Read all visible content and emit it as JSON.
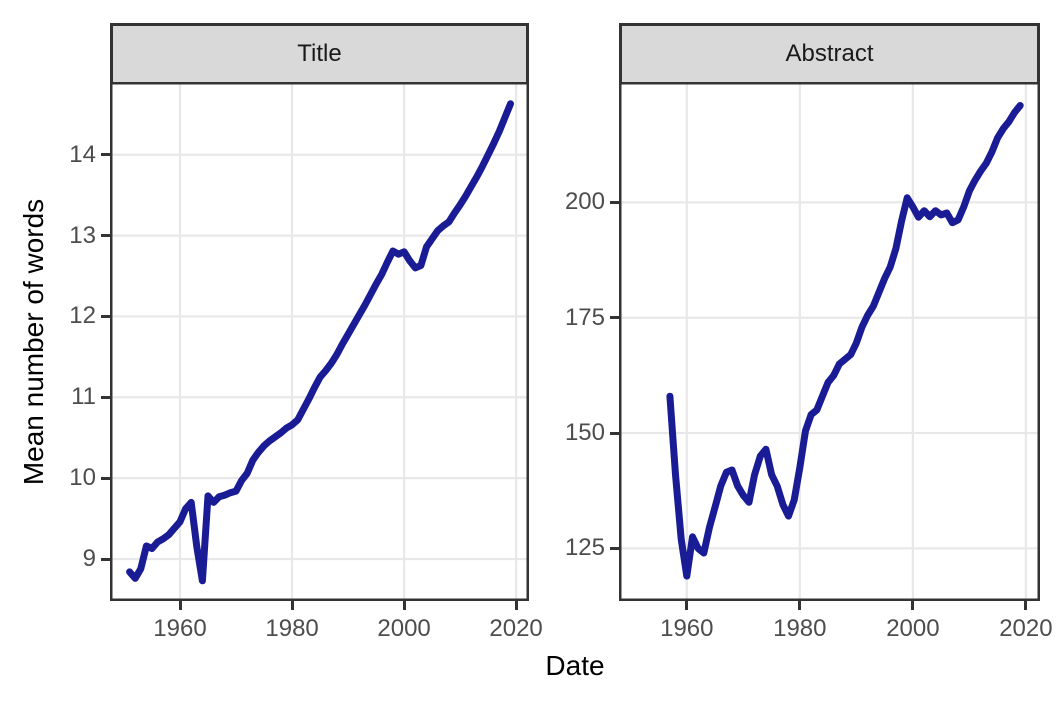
{
  "chart_data": {
    "type": "line",
    "title": "",
    "xlabel": "Date",
    "ylabel": "Mean number of words",
    "legend": "none",
    "grid": "major-only",
    "facets": [
      {
        "label": "Title",
        "xlim": [
          1947.5,
          2022.3
        ],
        "ylim": [
          8.48,
          14.9
        ],
        "xticks": [
          1960,
          1980,
          2000,
          2020
        ],
        "yticks": [
          9,
          10,
          11,
          12,
          13,
          14
        ],
        "x": [
          1951,
          1952,
          1953,
          1954,
          1955,
          1956,
          1957,
          1958,
          1959,
          1960,
          1961,
          1962,
          1963,
          1964,
          1965,
          1966,
          1967,
          1968,
          1969,
          1970,
          1971,
          1972,
          1973,
          1974,
          1975,
          1976,
          1977,
          1978,
          1979,
          1980,
          1981,
          1982,
          1983,
          1984,
          1985,
          1986,
          1987,
          1988,
          1989,
          1990,
          1991,
          1992,
          1993,
          1994,
          1995,
          1996,
          1997,
          1998,
          1999,
          2000,
          2001,
          2002,
          2003,
          2004,
          2005,
          2006,
          2007,
          2008,
          2009,
          2010,
          2011,
          2012,
          2013,
          2014,
          2015,
          2016,
          2017,
          2018,
          2019
        ],
        "y": [
          8.84,
          8.76,
          8.88,
          9.16,
          9.13,
          9.21,
          9.25,
          9.3,
          9.38,
          9.46,
          9.62,
          9.7,
          9.15,
          8.73,
          9.78,
          9.7,
          9.77,
          9.79,
          9.82,
          9.84,
          9.97,
          10.06,
          10.22,
          10.32,
          10.4,
          10.46,
          10.51,
          10.56,
          10.62,
          10.66,
          10.72,
          10.85,
          10.98,
          11.12,
          11.25,
          11.33,
          11.42,
          11.53,
          11.66,
          11.78,
          11.9,
          12.02,
          12.14,
          12.27,
          12.4,
          12.52,
          12.67,
          12.81,
          12.77,
          12.8,
          12.69,
          12.6,
          12.63,
          12.86,
          12.96,
          13.06,
          13.12,
          13.17,
          13.28,
          13.38,
          13.49,
          13.61,
          13.73,
          13.86,
          14.0,
          14.14,
          14.29,
          14.46,
          14.63
        ]
      },
      {
        "label": "Abstract",
        "xlim": [
          1948.0,
          2022.5
        ],
        "ylim": [
          113.6,
          226.1
        ],
        "xticks": [
          1960,
          1980,
          2000,
          2020
        ],
        "yticks": [
          125,
          150,
          175,
          200
        ],
        "x": [
          1957,
          1958,
          1959,
          1960,
          1961,
          1962,
          1963,
          1964,
          1965,
          1966,
          1967,
          1968,
          1969,
          1970,
          1971,
          1972,
          1973,
          1974,
          1975,
          1976,
          1977,
          1978,
          1979,
          1980,
          1981,
          1982,
          1983,
          1984,
          1985,
          1986,
          1987,
          1988,
          1989,
          1990,
          1991,
          1992,
          1993,
          1994,
          1995,
          1996,
          1997,
          1998,
          1999,
          2000,
          2001,
          2002,
          2003,
          2004,
          2005,
          2006,
          2007,
          2008,
          2009,
          2010,
          2011,
          2012,
          2013,
          2014,
          2015,
          2016,
          2017,
          2018,
          2019
        ],
        "y": [
          158,
          141,
          127,
          119,
          127.5,
          125,
          124,
          129.5,
          134,
          138.5,
          141.5,
          142,
          138.5,
          136.5,
          135,
          141,
          145,
          146.5,
          141,
          138.5,
          134.5,
          132,
          135.5,
          142.5,
          150.5,
          154,
          155,
          158,
          161,
          162.5,
          165,
          166,
          167,
          169.5,
          173,
          175.5,
          177.5,
          180.5,
          183.5,
          186,
          190,
          196,
          201,
          199,
          196.8,
          198.2,
          196.9,
          198.2,
          197.3,
          197.7,
          195.6,
          196.2,
          199,
          202.5,
          204.8,
          206.8,
          208.5,
          211,
          214,
          216,
          217.5,
          219.5,
          221
        ]
      }
    ]
  },
  "colors": {
    "line": "#191C94",
    "panel_border": "#333333",
    "grid": "#E8E8E8",
    "strip_bg": "#D9D9D9",
    "tick_label": "#4d4d4d",
    "axis_title": "#000000",
    "panel_bg": "#ffffff"
  }
}
